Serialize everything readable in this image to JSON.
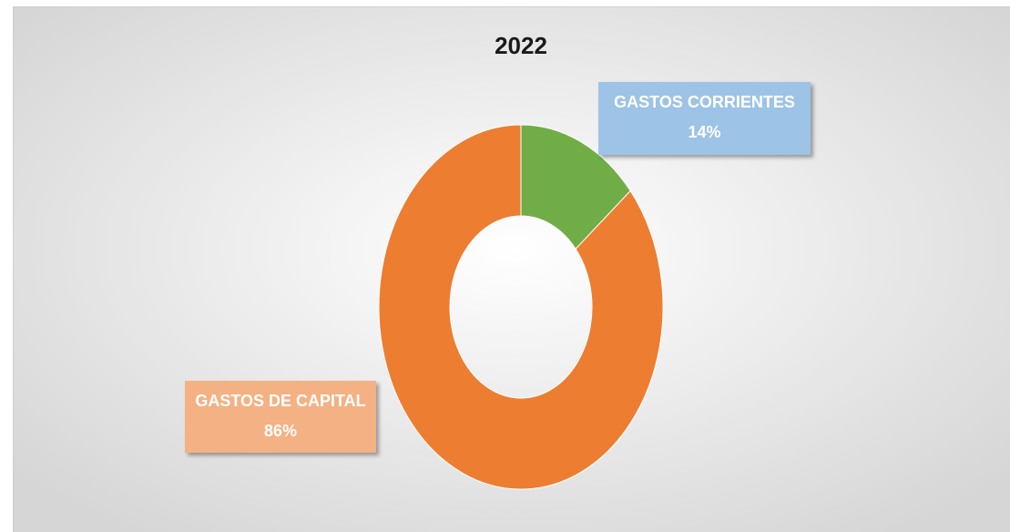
{
  "chart_data": {
    "type": "doughnut",
    "title": "2022",
    "categories": [
      "GASTOS CORRIENTES",
      "GASTOS DE CAPITAL"
    ],
    "values": [
      14,
      86
    ],
    "value_labels": [
      "14%",
      "86%"
    ],
    "colors": [
      "#70ad47",
      "#ed7d31"
    ],
    "label_colors": [
      "#9dc3e6",
      "#f4b183"
    ]
  }
}
